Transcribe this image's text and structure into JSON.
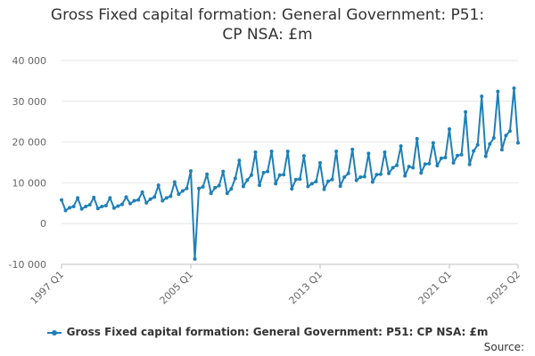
{
  "chart_data": {
    "type": "line",
    "title_lines": [
      "Gross Fixed capital formation: General Government: P51:",
      "CP NSA: £m"
    ],
    "x_tick_labels": [
      "1997 Q1",
      "2005 Q1",
      "2013 Q1",
      "2021 Q1",
      "2025 Q2"
    ],
    "y_tick_labels": [
      "-10 000",
      "0",
      "10 000",
      "20 000",
      "30 000",
      "40 000"
    ],
    "y_ticks": [
      -10000,
      0,
      10000,
      20000,
      30000,
      40000
    ],
    "ylim": [
      -10000,
      40000
    ],
    "x_start": {
      "year": 1997,
      "quarter": 1
    },
    "series": [
      {
        "name": "Gross Fixed capital formation: General Government: P51: CP NSA: £m",
        "color": "#1f80b8",
        "values": [
          5800,
          3200,
          3900,
          4200,
          6300,
          3600,
          4200,
          4600,
          6400,
          3700,
          4200,
          4400,
          6300,
          3800,
          4300,
          4700,
          6500,
          4900,
          5600,
          5800,
          7700,
          5100,
          6000,
          6500,
          9400,
          5600,
          6300,
          6700,
          10200,
          7200,
          8000,
          8600,
          12900,
          -8700,
          8600,
          9000,
          12100,
          7400,
          8800,
          9300,
          12800,
          7400,
          8500,
          11100,
          15500,
          9100,
          10700,
          11900,
          17500,
          9400,
          12500,
          12800,
          17700,
          9800,
          11900,
          12000,
          17700,
          8500,
          10800,
          10900,
          16600,
          9100,
          9800,
          10300,
          14900,
          8400,
          10400,
          10800,
          17700,
          9200,
          11400,
          12300,
          18200,
          10600,
          11400,
          11500,
          17200,
          10200,
          12000,
          12100,
          17500,
          12300,
          13700,
          14300,
          19000,
          11700,
          14000,
          13700,
          20800,
          12400,
          14600,
          14700,
          19800,
          14200,
          16000,
          16200,
          23200,
          14900,
          16700,
          16900,
          27400,
          14500,
          17800,
          19300,
          31200,
          16500,
          19500,
          21000,
          32400,
          18100,
          21600,
          22700,
          33200,
          19800
        ]
      }
    ]
  },
  "legend": {
    "label": "Gross Fixed capital formation: General Government: P51: CP NSA: £m"
  },
  "footer": {
    "source_label": "Source:"
  }
}
